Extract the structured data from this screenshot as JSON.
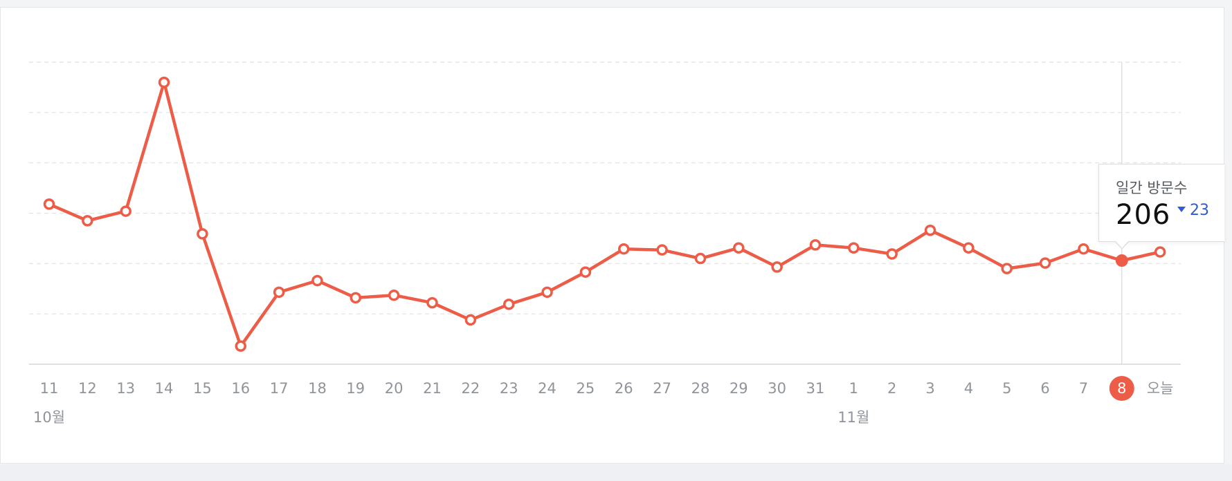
{
  "chart_data": {
    "type": "line",
    "title": "",
    "xlabel": "",
    "ylabel": "",
    "grid": true,
    "colors": {
      "line": "#ec5c47",
      "highlight": "#ec5c47",
      "grid": "#dfe1e5",
      "tick": "#8f949a",
      "delta": "#2f5bd4"
    },
    "categories": [
      "11",
      "12",
      "13",
      "14",
      "15",
      "16",
      "17",
      "18",
      "19",
      "20",
      "21",
      "22",
      "23",
      "24",
      "25",
      "26",
      "27",
      "28",
      "29",
      "30",
      "31",
      "1",
      "2",
      "3",
      "4",
      "5",
      "6",
      "7",
      "8",
      "오늘"
    ],
    "month_labels": [
      {
        "category": "11",
        "label": "10월"
      },
      {
        "category": "1",
        "label": "11월"
      }
    ],
    "ylim": [
      0,
      600
    ],
    "gridline_count": 6,
    "series": [
      {
        "values": [
          318,
          285,
          304,
          560,
          259,
          36,
          143,
          166,
          132,
          137,
          122,
          88,
          119,
          143,
          183,
          229,
          227,
          210,
          231,
          193,
          237,
          231,
          219,
          266,
          231,
          190,
          201,
          229,
          206,
          223
        ]
      }
    ],
    "highlight_index": 28,
    "tooltip": {
      "title": "일간 방문수",
      "value": "206",
      "delta": "23",
      "delta_direction": "down"
    }
  }
}
